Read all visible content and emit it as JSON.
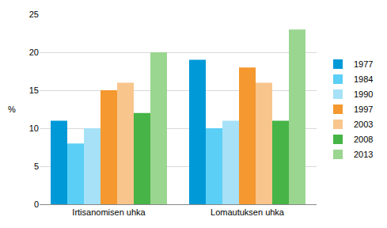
{
  "chart_data": {
    "type": "bar",
    "y_label": "%",
    "categories": [
      "Irtisanomisen uhka",
      "Lomautuksen uhka"
    ],
    "series": [
      {
        "name": "1977",
        "color": "#0099d8",
        "values": [
          11,
          19
        ]
      },
      {
        "name": "1984",
        "color": "#5bcff5",
        "values": [
          8,
          10
        ]
      },
      {
        "name": "1990",
        "color": "#a6e1f7",
        "values": [
          10,
          11
        ]
      },
      {
        "name": "1997",
        "color": "#f4982f",
        "values": [
          15,
          18
        ]
      },
      {
        "name": "2003",
        "color": "#f8c58c",
        "values": [
          16,
          16
        ]
      },
      {
        "name": "2008",
        "color": "#46b446",
        "values": [
          12,
          11
        ]
      },
      {
        "name": "2013",
        "color": "#9ad690",
        "values": [
          20,
          23
        ]
      }
    ],
    "ylim": [
      0,
      25
    ],
    "yticks": [
      0,
      5,
      10,
      15,
      20,
      25
    ],
    "grid": true,
    "legend": "right"
  }
}
